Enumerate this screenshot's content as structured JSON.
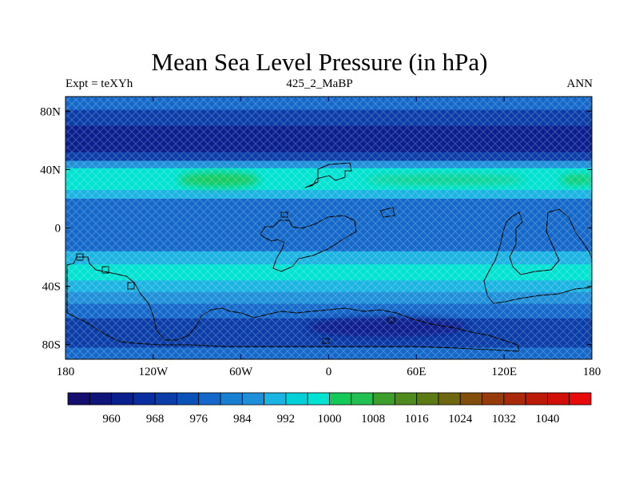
{
  "title": "Mean Sea Level Pressure (in hPa)",
  "subtitle_left": "Expt = teXYh",
  "subtitle_center": "425_2_MaBP",
  "subtitle_right": "ANN",
  "map": {
    "lat_ticks": [
      {
        "label": "80N",
        "lat": 80
      },
      {
        "label": "40N",
        "lat": 40
      },
      {
        "label": "0",
        "lat": 0
      },
      {
        "label": "40S",
        "lat": -40
      },
      {
        "label": "80S",
        "lat": -80
      }
    ],
    "lon_ticks": [
      {
        "label": "180",
        "lon": -180
      },
      {
        "label": "120W",
        "lon": -120
      },
      {
        "label": "60W",
        "lon": -60
      },
      {
        "label": "0",
        "lon": 0
      },
      {
        "label": "60E",
        "lon": 60
      },
      {
        "label": "120E",
        "lon": 120
      },
      {
        "label": "180",
        "lon": 180
      }
    ],
    "lat_range": [
      -90,
      90
    ],
    "lon_range": [
      -180,
      180
    ],
    "bands": [
      {
        "lat_top": 90,
        "lat_bottom": 81,
        "color": "#1468c9"
      },
      {
        "lat_top": 81,
        "lat_bottom": 70,
        "color": "#0a3da8"
      },
      {
        "lat_top": 70,
        "lat_bottom": 52,
        "color": "#0a1f8e"
      },
      {
        "lat_top": 52,
        "lat_bottom": 46,
        "color": "#0a3da8"
      },
      {
        "lat_top": 46,
        "lat_bottom": 41,
        "color": "#1e8fd8"
      },
      {
        "lat_top": 41,
        "lat_bottom": 26,
        "color": "#00e2d2"
      },
      {
        "lat_top": 26,
        "lat_bottom": 20,
        "color": "#1ab3e2"
      },
      {
        "lat_top": 20,
        "lat_bottom": 2,
        "color": "#1468c9"
      },
      {
        "lat_top": 2,
        "lat_bottom": -16,
        "color": "#1468c9"
      },
      {
        "lat_top": -16,
        "lat_bottom": -25,
        "color": "#1ab3e2"
      },
      {
        "lat_top": -25,
        "lat_bottom": -36,
        "color": "#00e2d2"
      },
      {
        "lat_top": -36,
        "lat_bottom": -44,
        "color": "#1ab3e2"
      },
      {
        "lat_top": -44,
        "lat_bottom": -52,
        "color": "#1e8fd8"
      },
      {
        "lat_top": -52,
        "lat_bottom": -62,
        "color": "#1468c9"
      },
      {
        "lat_top": -62,
        "lat_bottom": -72,
        "color": "#0a3da8"
      },
      {
        "lat_top": -72,
        "lat_bottom": -82,
        "color": "#0a3da8"
      },
      {
        "lat_top": -82,
        "lat_bottom": -90,
        "color": "#1468c9"
      }
    ],
    "highs": [
      {
        "lon": -75,
        "lat": 33,
        "rx_deg": 28,
        "ry_deg": 5,
        "color": "#12c95a"
      },
      {
        "lon": 80,
        "lat": 33,
        "rx_deg": 55,
        "ry_deg": 3,
        "color": "#18cf80"
      },
      {
        "lon": 170,
        "lat": 33,
        "rx_deg": 12,
        "ry_deg": 3,
        "color": "#12c95a"
      }
    ],
    "lows": [
      {
        "lon": 40,
        "lat": -68,
        "rx_deg": 55,
        "ry_deg": 7,
        "color": "#0a1f8e"
      }
    ],
    "coast_color": "#000000"
  },
  "colorbar": {
    "labels": [
      "960",
      "968",
      "976",
      "984",
      "992",
      "1000",
      "1008",
      "1016",
      "1024",
      "1032",
      "1040"
    ],
    "colors": [
      "#160e6e",
      "#0f1478",
      "#0a1f8e",
      "#0a2da0",
      "#0a3da8",
      "#0a52b8",
      "#1468c9",
      "#1780d2",
      "#1e8fd8",
      "#1ab3e2",
      "#00d0d8",
      "#00e2d2",
      "#12c95a",
      "#22c050",
      "#3c9f2c",
      "#4f8a1e",
      "#5c7a14",
      "#6e6610",
      "#824e0c",
      "#963a0a",
      "#a82a08",
      "#bc1a08",
      "#d20e08",
      "#e80a0a"
    ]
  }
}
